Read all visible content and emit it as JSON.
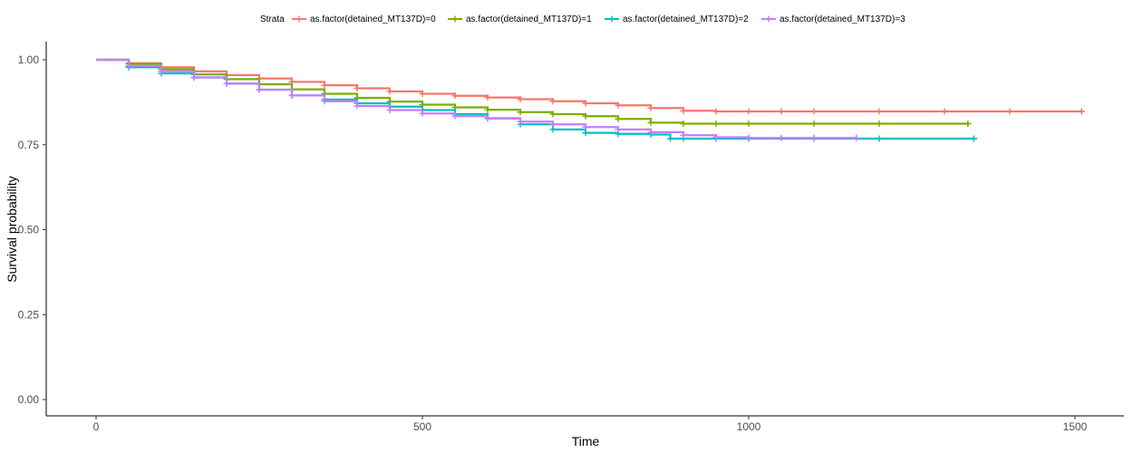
{
  "chart_data": {
    "type": "line",
    "xlabel": "Time",
    "ylabel": "Survival probability",
    "xlim": [
      0,
      1560
    ],
    "ylim": [
      0,
      1.05
    ],
    "x_ticks": [
      0,
      500,
      1000,
      1500
    ],
    "y_ticks": [
      0,
      0.25,
      0.5,
      0.75,
      1.0
    ],
    "x_tick_labels": [
      "0",
      "500",
      "1000",
      "1500"
    ],
    "y_tick_labels": [
      "0.00",
      "0.25",
      "0.50",
      "0.75",
      "1.00"
    ],
    "grid": false,
    "legend": {
      "position": "top",
      "title": "Strata",
      "entries": [
        "as.factor(detained_MT137D)=0",
        "as.factor(detained_MT137D)=1",
        "as.factor(detained_MT137D)=2",
        "as.factor(detained_MT137D)=3"
      ]
    },
    "series": [
      {
        "name": "as.factor(detained_MT137D)=0",
        "color": "#F8766D",
        "x": [
          0,
          50,
          100,
          150,
          200,
          250,
          300,
          350,
          400,
          450,
          500,
          550,
          600,
          650,
          700,
          750,
          800,
          850,
          900,
          950,
          1000,
          1050,
          1100,
          1200,
          1300,
          1400,
          1510
        ],
        "y": [
          1.0,
          0.99,
          0.978,
          0.966,
          0.955,
          0.945,
          0.935,
          0.925,
          0.916,
          0.907,
          0.9,
          0.894,
          0.889,
          0.884,
          0.878,
          0.872,
          0.866,
          0.858,
          0.85,
          0.848,
          0.848,
          0.848,
          0.848,
          0.848,
          0.848,
          0.848,
          0.848
        ]
      },
      {
        "name": "as.factor(detained_MT137D)=1",
        "color": "#7CAE00",
        "x": [
          0,
          50,
          100,
          150,
          200,
          250,
          300,
          350,
          400,
          450,
          500,
          550,
          600,
          650,
          700,
          750,
          800,
          850,
          900,
          950,
          1000,
          1100,
          1200,
          1336
        ],
        "y": [
          1.0,
          0.988,
          0.972,
          0.957,
          0.943,
          0.928,
          0.913,
          0.9,
          0.888,
          0.877,
          0.868,
          0.86,
          0.853,
          0.846,
          0.84,
          0.834,
          0.826,
          0.815,
          0.812,
          0.812,
          0.812,
          0.812,
          0.812,
          0.812
        ]
      },
      {
        "name": "as.factor(detained_MT137D)=2",
        "color": "#00BFC4",
        "x": [
          0,
          50,
          100,
          150,
          200,
          250,
          300,
          350,
          400,
          450,
          500,
          550,
          600,
          650,
          700,
          750,
          800,
          850,
          880,
          900,
          950,
          1000,
          1100,
          1200,
          1345
        ],
        "y": [
          1.0,
          0.978,
          0.96,
          0.948,
          0.93,
          0.912,
          0.895,
          0.883,
          0.872,
          0.862,
          0.852,
          0.84,
          0.828,
          0.81,
          0.795,
          0.785,
          0.782,
          0.78,
          0.768,
          0.768,
          0.768,
          0.768,
          0.768,
          0.768,
          0.768
        ]
      },
      {
        "name": "as.factor(detained_MT137D)=3",
        "color": "#C77CFF",
        "x": [
          0,
          50,
          100,
          150,
          200,
          250,
          300,
          350,
          400,
          450,
          500,
          550,
          600,
          650,
          700,
          750,
          800,
          850,
          900,
          950,
          1000,
          1050,
          1100,
          1165
        ],
        "y": [
          1.0,
          0.982,
          0.966,
          0.948,
          0.93,
          0.912,
          0.895,
          0.878,
          0.864,
          0.852,
          0.842,
          0.834,
          0.827,
          0.818,
          0.81,
          0.802,
          0.795,
          0.787,
          0.778,
          0.772,
          0.77,
          0.77,
          0.77,
          0.77
        ]
      }
    ]
  }
}
